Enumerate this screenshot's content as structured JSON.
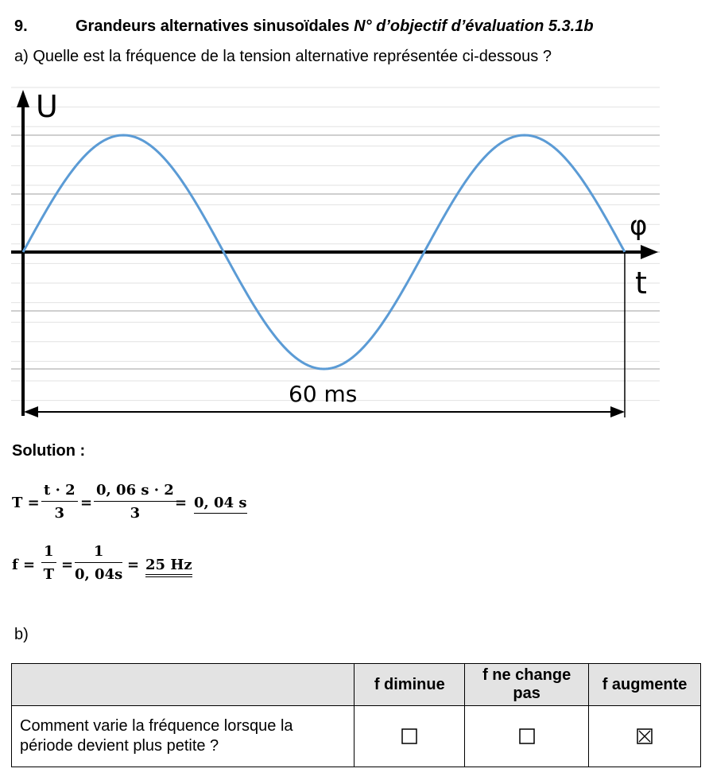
{
  "header": {
    "number": "9.",
    "title_bold": "Grandeurs alternatives sinusoïdales",
    "title_italic": "N° d’objectif d’évaluation 5.3.1b"
  },
  "part_a": {
    "question": "a) Quelle est la fréquence de la tension alternative représentée ci-dessous ?"
  },
  "figure": {
    "y_axis_label": "U",
    "x_axis_label_top": "φ",
    "x_axis_label_bottom": "t",
    "duration_label": "60 ms",
    "wave_color": "#5b9bd5",
    "cycles_shown": 1.5
  },
  "solution": {
    "label": "Solution :",
    "eq1": {
      "lhs": "T =",
      "frac1_num": "t · 2",
      "frac1_den": "3",
      "eq": "=",
      "frac2_num": "0, 06 s · 2",
      "frac2_den": "3",
      "eq2": "=",
      "result": "0, 04 s"
    },
    "eq2": {
      "lhs": "f =",
      "frac1_num": "1",
      "frac1_den": "T",
      "eq": "=",
      "frac2_num": "1",
      "frac2_den": "0, 04s",
      "eq2": "=",
      "result": "25 Hz"
    }
  },
  "part_b": {
    "label": "b)",
    "table": {
      "headers": [
        "",
        "f diminue",
        "f ne change pas",
        "f augmente"
      ],
      "row": {
        "question": "Comment varie la fréquence lorsque la période devient plus petite ?",
        "checked": [
          false,
          false,
          true
        ]
      }
    }
  }
}
